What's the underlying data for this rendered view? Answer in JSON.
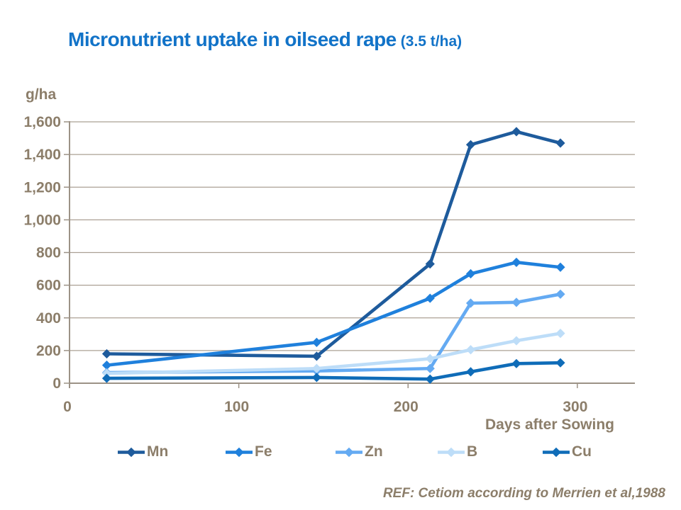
{
  "title": {
    "main": "Micronutrient uptake in oilseed rape",
    "suffix": "(3.5 t/ha)"
  },
  "colors": {
    "title_text": "#1273C8",
    "axis_text": "#8C7E6A",
    "gridline": "#ABA094",
    "axis_line": "#9C9286",
    "background": "#FFFFFF"
  },
  "chart_data": {
    "type": "line",
    "title": "Micronutrient uptake in oilseed rape (3.5 t/ha)",
    "xlabel": "Days after Sowing",
    "ylabel": "g/ha",
    "xlim": [
      0,
      334
    ],
    "ylim": [
      0,
      1600
    ],
    "x_ticks": [
      0,
      100,
      200,
      300
    ],
    "y_ticks": [
      0,
      200,
      400,
      600,
      800,
      1000,
      1200,
      1400,
      1600
    ],
    "y_tick_labels": [
      "0",
      "200",
      "400",
      "600",
      "800",
      "1,000",
      "1,200",
      "1,400",
      "1,600"
    ],
    "grid": true,
    "legend_position": "bottom",
    "marker": "diamond",
    "x": [
      22,
      146,
      213,
      237,
      264,
      290
    ],
    "series": [
      {
        "name": "Mn",
        "color": "#1E5B9C",
        "values": [
          180,
          165,
          730,
          1460,
          1540,
          1470
        ]
      },
      {
        "name": "Fe",
        "color": "#1F80DC",
        "values": [
          110,
          250,
          520,
          670,
          740,
          710
        ]
      },
      {
        "name": "Zn",
        "color": "#64AAF2",
        "values": [
          65,
          75,
          90,
          490,
          495,
          545
        ]
      },
      {
        "name": "B",
        "color": "#BDDDF8",
        "values": [
          60,
          90,
          150,
          205,
          260,
          305
        ]
      },
      {
        "name": "Cu",
        "color": "#0F6CB8",
        "values": [
          30,
          35,
          25,
          70,
          120,
          125
        ]
      }
    ]
  },
  "footer": {
    "ref": "REF: Cetiom according to Merrien et al,1988"
  }
}
